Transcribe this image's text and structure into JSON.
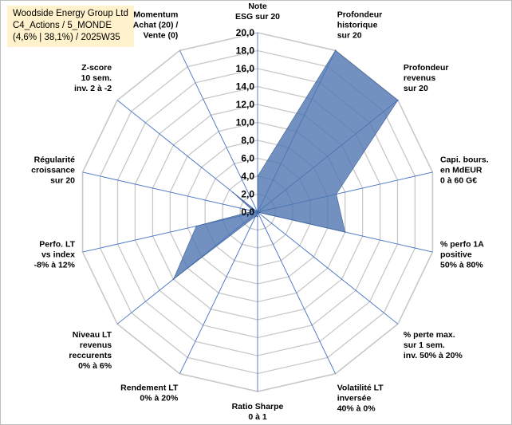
{
  "header": {
    "line1": "Woodside Energy Group Ltd",
    "line2": "C4_Actions / 5_MONDE",
    "line3": "(4,6% | 38,1%) / 2025W35"
  },
  "chart_data": {
    "type": "radar",
    "axes": [
      [
        "Note",
        "ESG sur 20"
      ],
      [
        "Profondeur",
        "historique",
        "sur 20"
      ],
      [
        "Profondeur",
        "revenus",
        "sur 20"
      ],
      [
        "Capi. bours.",
        "en MdEUR",
        "0 à 60 G€"
      ],
      [
        "% perfo 1A",
        "positive",
        "50% à 80%"
      ],
      [
        "% perte max.",
        "sur 1 sem.",
        "inv. 50% à 20%"
      ],
      [
        "Volatilité LT",
        "inversée",
        "40% à 0%"
      ],
      [
        "Ratio Sharpe",
        "0 à 1"
      ],
      [
        "Rendement LT",
        "0% à 20%"
      ],
      [
        "Niveau LT",
        "revenus",
        "reccurents",
        "0% à 6%"
      ],
      [
        "Perfo. LT",
        "vs index",
        "-8% à 12%"
      ],
      [
        "Régularité",
        "croissance",
        "sur 20"
      ],
      [
        "Z-score",
        "10 sem.",
        "inv. 2 à -2"
      ],
      [
        "Momentum",
        "Achat (20) /",
        "Vente (0)"
      ]
    ],
    "values": [
      4.0,
      20.0,
      20.0,
      9.0,
      10.0,
      0.0,
      0.0,
      0.5,
      0.5,
      12.0,
      7.0,
      0.5,
      3.5,
      0.0
    ],
    "rlim": [
      0,
      20
    ],
    "ticks": [
      "0,0",
      "2,0",
      "4,0",
      "6,0",
      "8,0",
      "10,0",
      "12,0",
      "14,0",
      "16,0",
      "18,0",
      "20,0"
    ],
    "grid": true,
    "legend": "none",
    "colors": {
      "fill": "#4f76b0",
      "fill_opacity": 0.8,
      "spoke": "#4472c4",
      "grid": "#c8c8c8"
    }
  }
}
